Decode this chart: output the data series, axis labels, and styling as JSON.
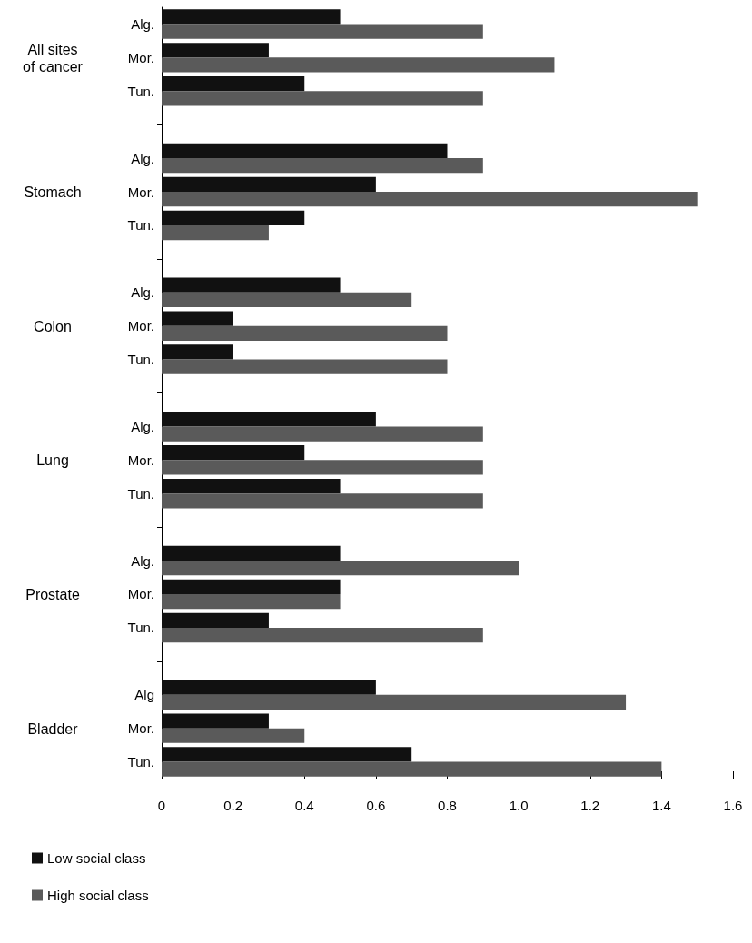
{
  "chart_data": {
    "type": "bar",
    "orientation": "horizontal",
    "categories": [
      "Alg.",
      "Mor.",
      "Tun.",
      null,
      "Alg.",
      "Mor.",
      "Tun.",
      null,
      "Alg.",
      "Mor.",
      "Tun.",
      null,
      "Alg.",
      "Mor.",
      "Tun.",
      null,
      "Alg.",
      "Mor.",
      "Tun.",
      null,
      "Alg",
      "Mor.",
      "Tun."
    ],
    "series": [
      {
        "name": "Low social class",
        "color": "#111111",
        "values": [
          0.5,
          0.3,
          0.4,
          null,
          0.8,
          0.6,
          0.4,
          null,
          0.5,
          0.2,
          0.2,
          null,
          0.6,
          0.4,
          0.5,
          null,
          0.5,
          0.5,
          0.3,
          null,
          0.6,
          0.3,
          0.7
        ]
      },
      {
        "name": "High social class",
        "color": "#5a5a5a",
        "values": [
          0.9,
          1.1,
          0.9,
          null,
          0.9,
          1.5,
          0.3,
          null,
          0.7,
          0.8,
          0.8,
          null,
          0.9,
          0.9,
          0.9,
          null,
          1.0,
          0.5,
          0.9,
          null,
          1.3,
          0.4,
          1.4
        ]
      }
    ],
    "annotations": [
      "All sites of cancer",
      "Stomach",
      "Colon",
      "Lung",
      "Prostate",
      "Bladder"
    ],
    "xlim": [
      0,
      1.6
    ],
    "xticks": [
      0,
      0.2,
      0.4,
      0.6,
      0.8,
      {
        "value": 1,
        "label": "1.0"
      },
      {
        "value": 1.2,
        "label": "1.2"
      },
      {
        "value": 1.4,
        "label": "1.4"
      },
      1.6
    ],
    "ref_lines": [
      {
        "axis": "x",
        "value": 1,
        "color": "#333333",
        "line_style": "dashed"
      }
    ],
    "legend": "bottom left",
    "grid": false
  }
}
